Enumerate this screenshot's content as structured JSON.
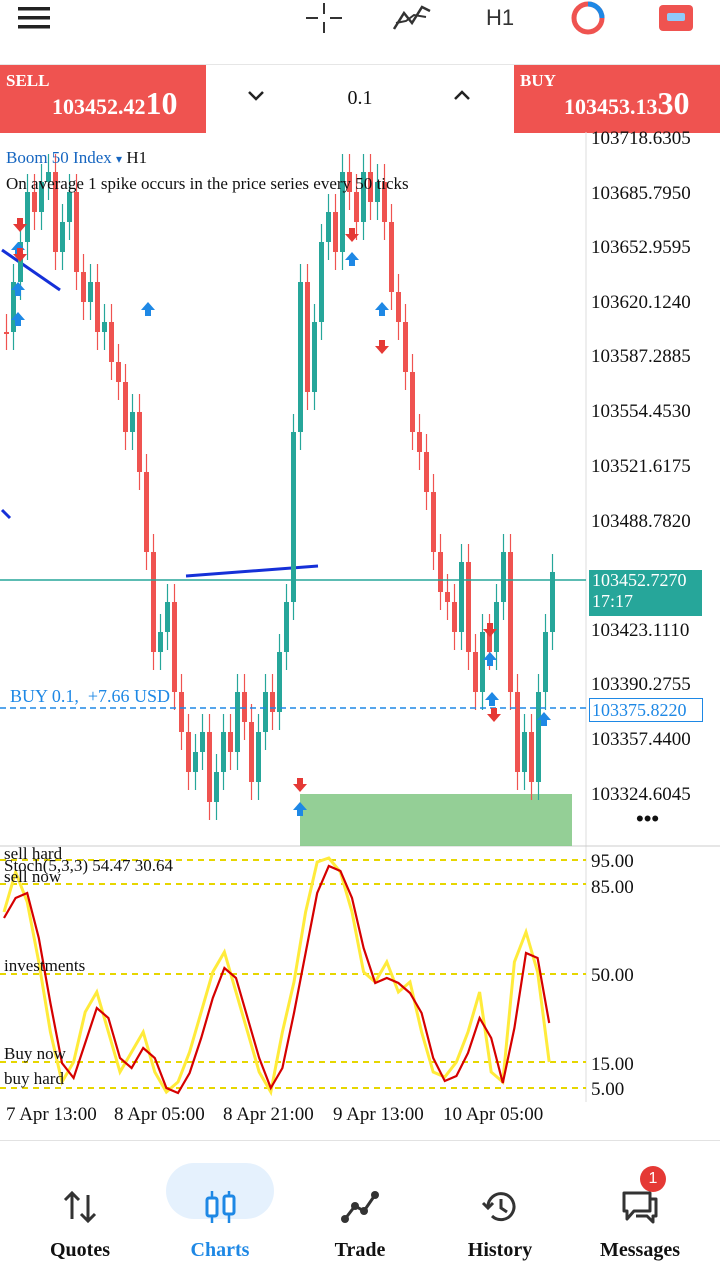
{
  "toolbar": {
    "icons": [
      "menu-icon",
      "crosshair-icon",
      "indicators-icon",
      "timeframe",
      "object-icon",
      "account-icon"
    ],
    "timeframe": "H1"
  },
  "trade": {
    "sell_label": "SELL",
    "sell_price_main": "103452.42",
    "sell_price_big": "10",
    "lot": "0.1",
    "buy_label": "BUY",
    "buy_price_main": "103453.13",
    "buy_price_big": "30",
    "colors": {
      "sell": "#ef5350",
      "buy": "#ef5350"
    }
  },
  "chart": {
    "symbol": "Boom 50 Index",
    "symbol_timeframe": "H1",
    "description": "On average 1 spike occurs in the price series every 50 ticks",
    "position_label": "BUY 0.1,",
    "position_profit": "+7.66 USD",
    "price_labels": [
      "103718.6305",
      "103685.7950",
      "103652.9595",
      "103620.1240",
      "103587.2885",
      "103554.4530",
      "103521.6175",
      "103488.7820",
      "103423.1110",
      "103390.2755",
      "103357.4400",
      "103324.6045"
    ],
    "current_price": "103452.7270",
    "countdown": "17:17",
    "position_price": "103375.8220",
    "more": "•••",
    "colors": {
      "bull": "#26a69a",
      "bear": "#ef5350",
      "current": "#26a69a",
      "position": "#1e88e5"
    }
  },
  "stoch": {
    "title": "Stoch(5,3,3) 54.47 30.64",
    "levels": [
      "95.00",
      "85.00",
      "50.00",
      "15.00",
      "5.00"
    ],
    "level_texts": {
      "sell_hard": "sell hard",
      "sell_now": "sell now",
      "investments": "investments",
      "buy_now": "Buy now",
      "buy_hard": "buy hard"
    },
    "colors": {
      "main": "#ffeb3b",
      "signal": "#d50000",
      "levels": "#e6d600"
    }
  },
  "dates": [
    "7 Apr 13:00",
    "8 Apr 05:00",
    "8 Apr 21:00",
    "9 Apr 13:00",
    "10 Apr 05:00"
  ],
  "nav": {
    "items": [
      {
        "label": "Quotes",
        "icon": "sort-arrows-icon"
      },
      {
        "label": "Charts",
        "icon": "candles-icon"
      },
      {
        "label": "Trade",
        "icon": "trade-line-icon"
      },
      {
        "label": "History",
        "icon": "history-icon"
      },
      {
        "label": "Messages",
        "icon": "messages-icon"
      }
    ],
    "badge": "1",
    "active_color": "#1e88e5"
  }
}
